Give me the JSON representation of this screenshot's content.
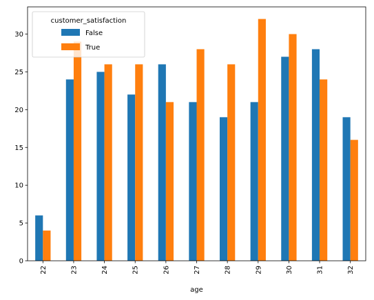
{
  "chart_data": {
    "type": "bar",
    "xlabel": "age",
    "ylabel": "",
    "categories": [
      "22",
      "23",
      "24",
      "25",
      "26",
      "27",
      "28",
      "29",
      "30",
      "31",
      "32"
    ],
    "series": [
      {
        "name": "False",
        "color": "#1f77b4",
        "values": [
          6,
          24,
          25,
          22,
          26,
          21,
          19,
          21,
          27,
          28,
          19
        ]
      },
      {
        "name": "True",
        "color": "#ff7f0e",
        "values": [
          4,
          29,
          26,
          26,
          21,
          28,
          26,
          32,
          30,
          24,
          16
        ]
      }
    ],
    "ylim": [
      0,
      33.6
    ],
    "yticks": [
      0,
      5,
      10,
      15,
      20,
      25,
      30
    ],
    "grid": false,
    "legend": {
      "title": "customer_satisfaction",
      "placement": "top-left"
    }
  }
}
